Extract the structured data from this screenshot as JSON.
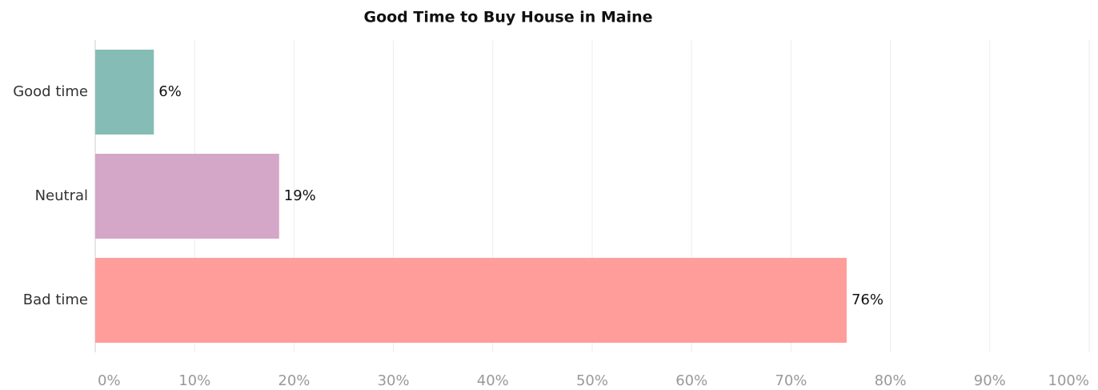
{
  "chart_data": {
    "type": "hbar",
    "title": "Good Time to Buy House in Maine",
    "categories": [
      "Good time",
      "Neutral",
      "Bad time"
    ],
    "series": [
      {
        "name": "Share",
        "values": [
          5.9,
          18.5,
          75.6
        ],
        "value_labels": [
          "6%",
          "19%",
          "76%"
        ],
        "colors": [
          "#86bcb6",
          "#d4a6c8",
          "#ff9d9a"
        ]
      }
    ],
    "xlim": [
      0,
      100
    ],
    "xticks": [
      {
        "value": 0,
        "label": "0%"
      },
      {
        "value": 10,
        "label": "10%"
      },
      {
        "value": 20,
        "label": "20%"
      },
      {
        "value": 30,
        "label": "30%"
      },
      {
        "value": 40,
        "label": "40%"
      },
      {
        "value": 50,
        "label": "50%"
      },
      {
        "value": 60,
        "label": "60%"
      },
      {
        "value": 70,
        "label": "70%"
      },
      {
        "value": 80,
        "label": "80%"
      },
      {
        "value": 90,
        "label": "90%"
      },
      {
        "value": 100,
        "label": "100%"
      }
    ],
    "grid": true
  }
}
